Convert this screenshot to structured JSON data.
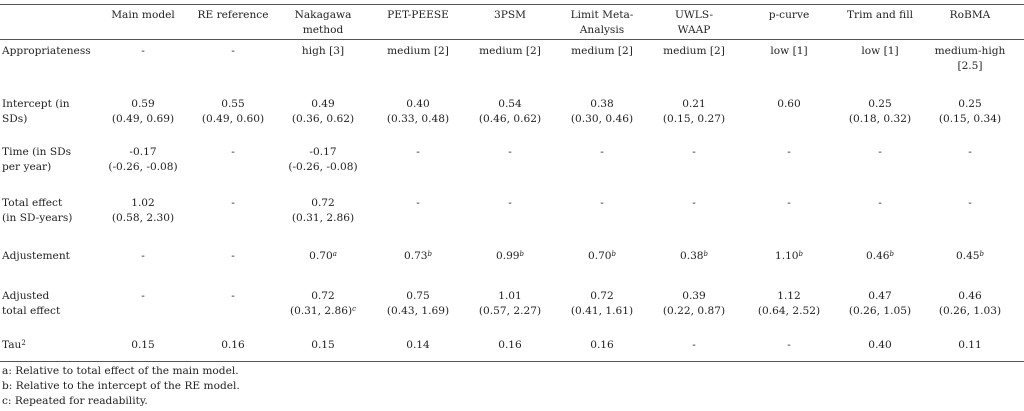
{
  "header": [
    "",
    "Main model",
    "RE reference",
    "Nakagawa\nmethod",
    "PET-PEESE",
    "3PSM",
    "Limit Meta-\nAnalysis",
    "UWLS-\nWAAP",
    "p-curve",
    "Trim and fill",
    "RoBMA"
  ],
  "rows": [
    {
      "label": "Appropriateness",
      "cells": [
        [
          "-"
        ],
        [
          "-"
        ],
        [
          "high [3]"
        ],
        [
          "medium [2]"
        ],
        [
          "medium [2]"
        ],
        [
          "medium [2]"
        ],
        [
          "medium [2]"
        ],
        [
          "low [1]"
        ],
        [
          "low [1]"
        ],
        [
          "medium-high",
          "[2.5]"
        ]
      ]
    },
    {
      "label": "Intercept (in\nSDs)",
      "cells": [
        [
          "0.59",
          "(0.49, 0.69)"
        ],
        [
          "0.55",
          "(0.49, 0.60)"
        ],
        [
          "0.49",
          "(0.36, 0.62)"
        ],
        [
          "0.40",
          "(0.33, 0.48)"
        ],
        [
          "0.54",
          "(0.46, 0.62)"
        ],
        [
          "0.38",
          "(0.30, 0.46)"
        ],
        [
          "0.21",
          "(0.15, 0.27)"
        ],
        [
          "0.60"
        ],
        [
          "0.25",
          "(0.18, 0.32)"
        ],
        [
          "0.25",
          "(0.15, 0.34)"
        ]
      ]
    },
    {
      "label": "Time (in SDs\nper year)",
      "cells": [
        [
          "-0.17",
          "(-0.26, -0.08)"
        ],
        [
          "-"
        ],
        [
          "-0.17",
          "(-0.26, -0.08)"
        ],
        [
          "-"
        ],
        [
          "-"
        ],
        [
          "-"
        ],
        [
          "-"
        ],
        [
          "-"
        ],
        [
          "-"
        ],
        [
          "-"
        ]
      ]
    },
    {
      "label": "Total effect\n(in SD-years)",
      "cells": [
        [
          "1.02",
          "(0.58, 2.30)"
        ],
        [
          "-"
        ],
        [
          "0.72",
          "(0.31, 2.86)"
        ],
        [
          "-"
        ],
        [
          "-"
        ],
        [
          "-"
        ],
        [
          "-"
        ],
        [
          "-"
        ],
        [
          "-"
        ],
        [
          "-"
        ]
      ]
    },
    {
      "label": "Adjustement",
      "cells": [
        [
          "-"
        ],
        [
          "-"
        ],
        [
          "0.70"
        ],
        [
          "0.73"
        ],
        [
          "0.99"
        ],
        [
          "0.70"
        ],
        [
          "0.38"
        ],
        [
          "1.10"
        ],
        [
          "0.46"
        ],
        [
          "0.45"
        ]
      ],
      "sups": [
        "",
        "",
        "a",
        "b",
        "b",
        "b",
        "b",
        "b",
        "b",
        "b"
      ]
    },
    {
      "label": "Adjusted\ntotal effect",
      "cells": [
        [
          "-"
        ],
        [
          "-"
        ],
        [
          "0.72",
          "(0.31, 2.86)"
        ],
        [
          "0.75",
          "(0.43, 1.69)"
        ],
        [
          "1.01",
          "(0.57, 2.27)"
        ],
        [
          "0.72",
          "(0.41, 1.61)"
        ],
        [
          "0.39",
          "(0.22, 0.87)"
        ],
        [
          "1.12",
          "(0.64, 2.52)"
        ],
        [
          "0.47",
          "(0.26, 1.05)"
        ],
        [
          "0.46",
          "(0.26, 1.03)"
        ]
      ],
      "sup_line2": [
        "",
        "",
        "c",
        "",
        "",
        "",
        "",
        "",
        "",
        ""
      ]
    },
    {
      "label": "Tau",
      "label_sup": "2",
      "cells": [
        [
          "0.15"
        ],
        [
          "0.16"
        ],
        [
          "0.15"
        ],
        [
          "0.14"
        ],
        [
          "0.16"
        ],
        [
          "0.16"
        ],
        [
          "-"
        ],
        [
          "-"
        ],
        [
          "0.40"
        ],
        [
          "0.11"
        ]
      ]
    }
  ],
  "notes": [
    "a: Relative to total effect of the main model.",
    "b: Relative to the intercept of the RE model.",
    "c: Repeated for readability."
  ]
}
